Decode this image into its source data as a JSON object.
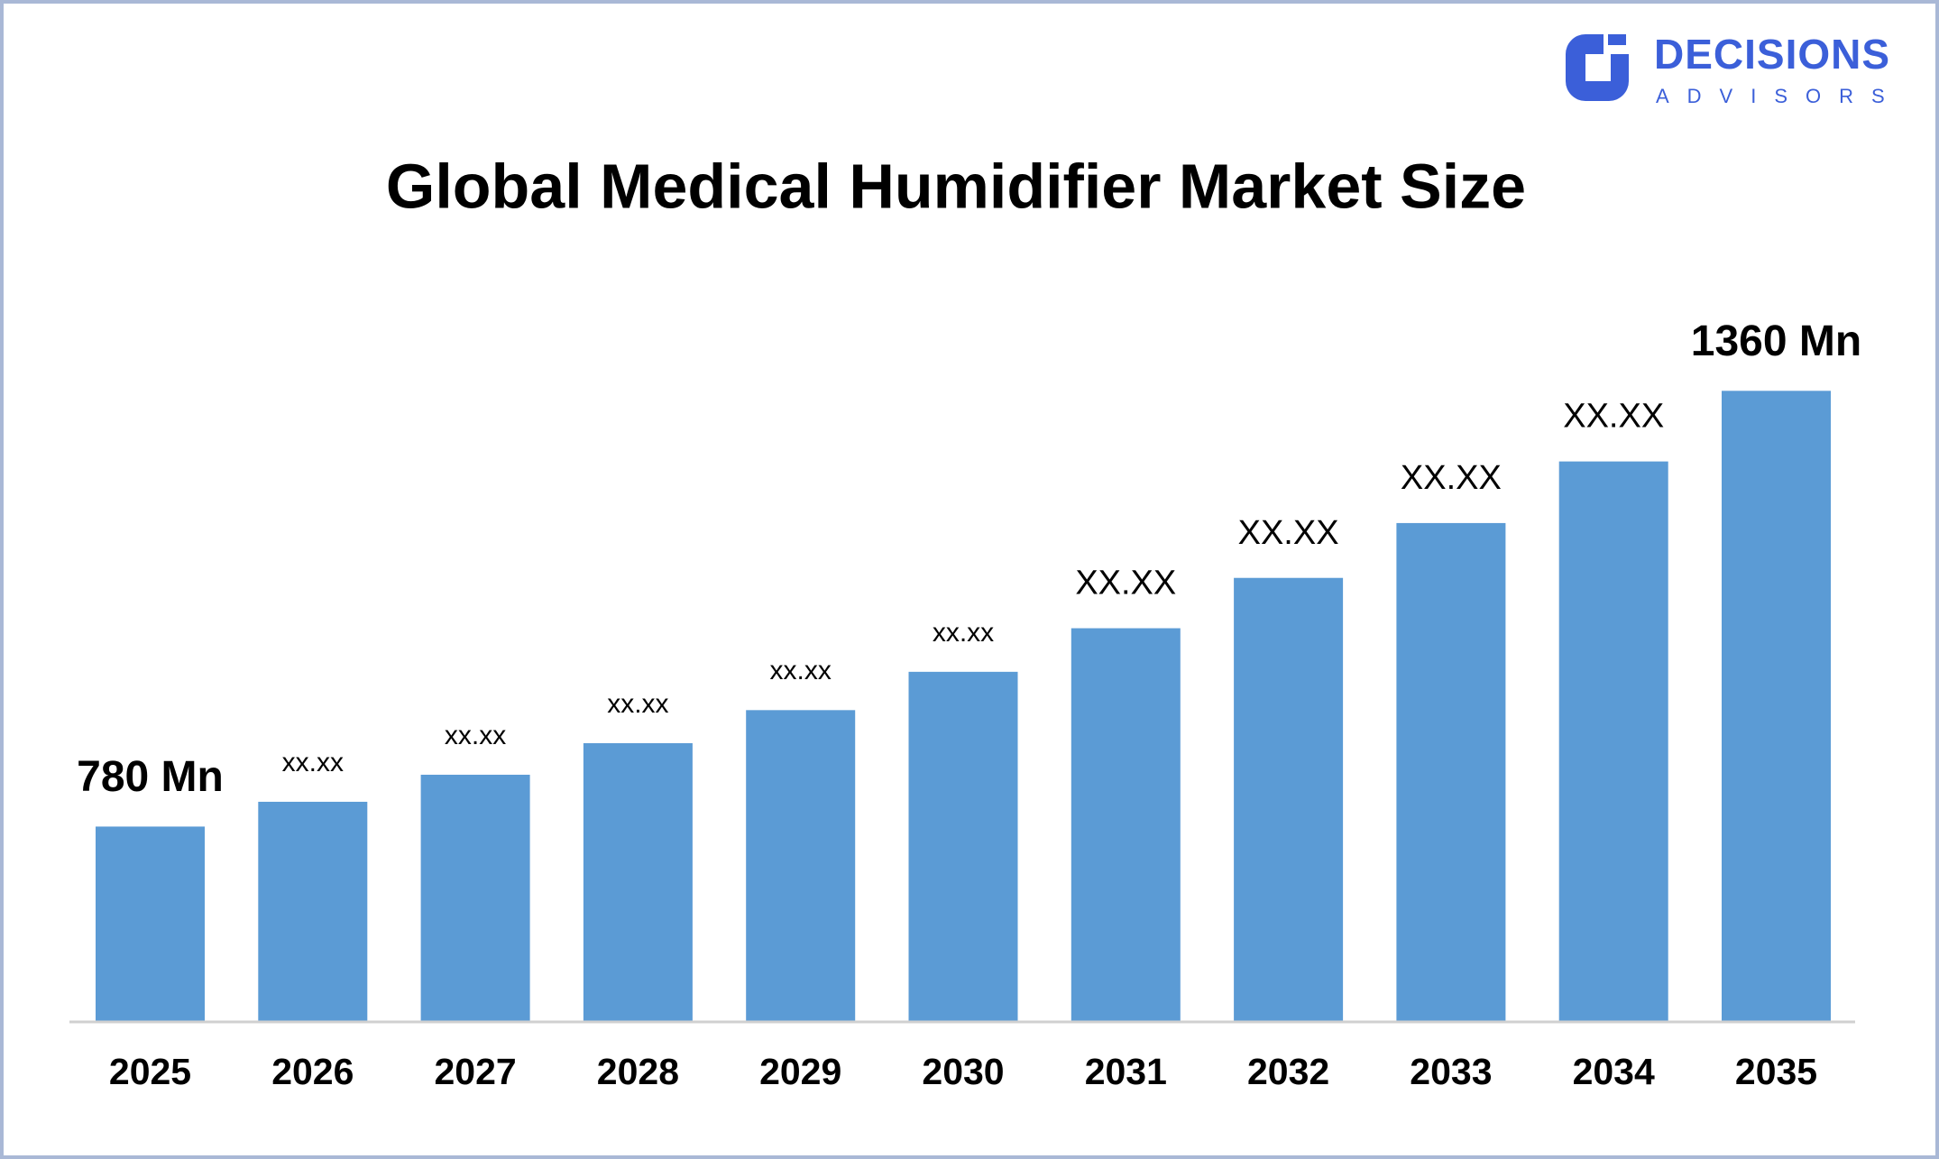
{
  "logo": {
    "name": "DECISIONS",
    "tagline": "ADVISORS"
  },
  "chart_data": {
    "type": "bar",
    "title": "Global Medical Humidifier Market Size",
    "categories": [
      "2025",
      "2026",
      "2027",
      "2028",
      "2029",
      "2030",
      "2031",
      "2032",
      "2033",
      "2034",
      "2035"
    ],
    "values": [
      780,
      813,
      849,
      891,
      935,
      986,
      1044,
      1111,
      1184,
      1266,
      1360
    ],
    "value_labels": [
      "780 Mn",
      "xx.xx",
      "xx.xx",
      "xx.xx",
      "xx.xx",
      "xx.xx",
      "XX.XX",
      "XX.XX",
      "XX.XX",
      "XX.XX",
      "1360 Mn"
    ],
    "color": "#5b9bd5",
    "ylim": [
      520,
      1400
    ]
  }
}
